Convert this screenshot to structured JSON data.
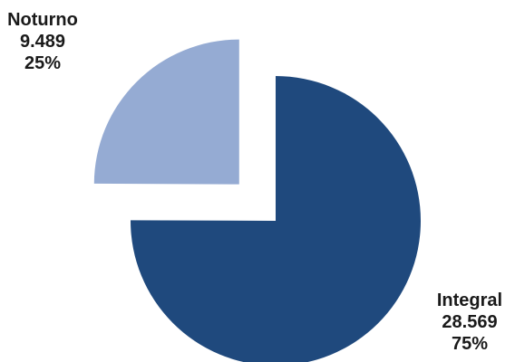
{
  "chart_data": {
    "type": "pie",
    "categories": [
      "Integral",
      "Noturno"
    ],
    "values": [
      28569,
      9489
    ],
    "value_labels": [
      "28.569",
      "9.489"
    ],
    "percent_labels": [
      "75%",
      "25%"
    ],
    "exploded": [
      "Noturno"
    ],
    "colors": [
      "#1f497d",
      "#95abd3"
    ],
    "start": "12 o'clock",
    "legend": "none",
    "data_labels": "outside, bold, three lines: name / value / percent"
  }
}
